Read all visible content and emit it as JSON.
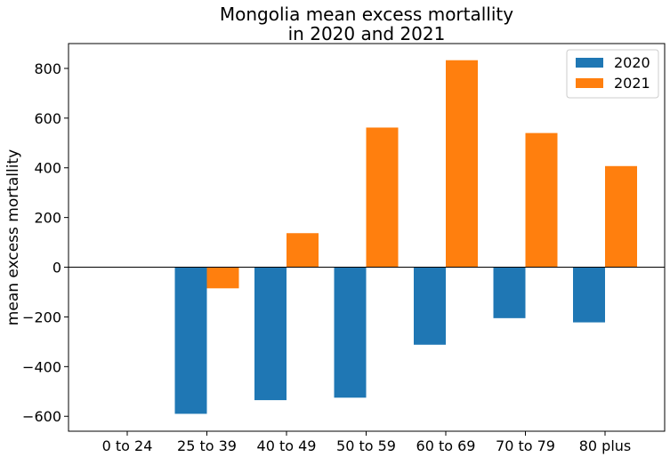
{
  "chart_data": {
    "type": "bar",
    "title": [
      "Mongolia mean excess mortallity",
      "in 2020 and 2021"
    ],
    "xlabel": "",
    "ylabel": "mean excess mortallity",
    "categories": [
      "0 to 24",
      "25 to 39",
      "40 to 49",
      "50 to 59",
      "60 to 69",
      "70 to 79",
      "80 plus"
    ],
    "series": [
      {
        "name": "2020",
        "color": "#1f77b4",
        "values": [
          0,
          -590,
          -535,
          -525,
          -312,
          -205,
          -222
        ]
      },
      {
        "name": "2021",
        "color": "#ff7f0e",
        "values": [
          0,
          -85,
          137,
          562,
          833,
          540,
          407
        ]
      }
    ],
    "ylim": [
      -660,
      900
    ],
    "yticks": [
      -600,
      -400,
      -200,
      0,
      200,
      400,
      600,
      800
    ],
    "ytick_labels": [
      "−600",
      "−400",
      "−200",
      "0",
      "200",
      "400",
      "600",
      "800"
    ],
    "zero_line": true,
    "grid": false,
    "legend_position": "top-right"
  }
}
